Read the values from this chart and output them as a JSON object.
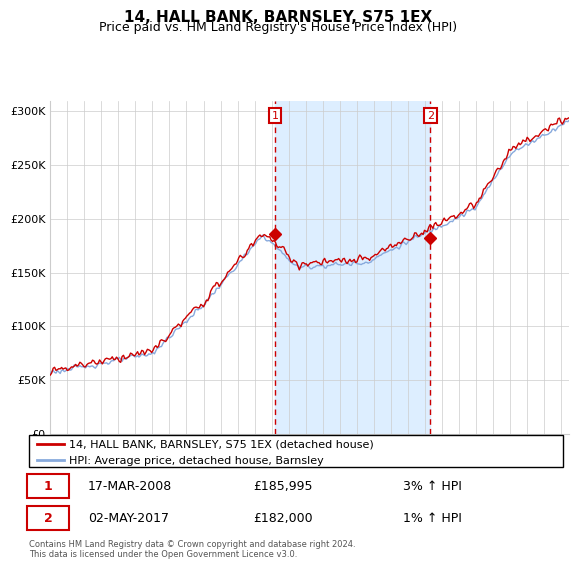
{
  "title": "14, HALL BANK, BARNSLEY, S75 1EX",
  "subtitle": "Price paid vs. HM Land Registry's House Price Index (HPI)",
  "ylabel_ticks": [
    "£0",
    "£50K",
    "£100K",
    "£150K",
    "£200K",
    "£250K",
    "£300K"
  ],
  "ytick_values": [
    0,
    50000,
    100000,
    150000,
    200000,
    250000,
    300000
  ],
  "ylim": [
    0,
    310000
  ],
  "xlim_start": 1995.0,
  "xlim_end": 2025.5,
  "transaction1_x": 2008.21,
  "transaction1_y": 185995,
  "transaction1_label": "17-MAR-2008",
  "transaction1_price": "£185,995",
  "transaction1_hpi": "3% ↑ HPI",
  "transaction2_x": 2017.33,
  "transaction2_y": 182000,
  "transaction2_label": "02-MAY-2017",
  "transaction2_price": "£182,000",
  "transaction2_hpi": "1% ↑ HPI",
  "line_color_price": "#cc0000",
  "line_color_hpi": "#88aadd",
  "shade_color": "#ddeeff",
  "marker_box_color": "#cc0000",
  "background_color": "#ffffff",
  "grid_color": "#cccccc",
  "legend_label_price": "14, HALL BANK, BARNSLEY, S75 1EX (detached house)",
  "legend_label_hpi": "HPI: Average price, detached house, Barnsley",
  "footer": "Contains HM Land Registry data © Crown copyright and database right 2024.\nThis data is licensed under the Open Government Licence v3.0.",
  "title_fontsize": 11,
  "subtitle_fontsize": 9,
  "axis_fontsize": 8
}
